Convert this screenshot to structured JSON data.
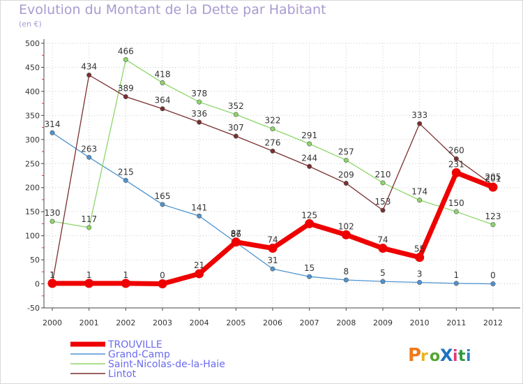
{
  "chart_data": {
    "type": "line",
    "title": "Evolution du Montant de la Dette par Habitant",
    "unit": "(en €)",
    "ylim": [
      -50,
      500
    ],
    "yticks": [
      -50,
      0,
      50,
      100,
      150,
      200,
      250,
      300,
      350,
      400,
      450,
      500
    ],
    "x": [
      "2000",
      "2001",
      "2002",
      "2003",
      "2004",
      "2005",
      "2006",
      "2007",
      "2008",
      "2009",
      "2010",
      "2011",
      "2012"
    ],
    "legend_position": "bottom-left",
    "series": [
      {
        "name": "TROUVILLE",
        "color": "#ee0000",
        "values": [
          1,
          1,
          1,
          0,
          21,
          87,
          74,
          125,
          102,
          74,
          55,
          231,
          201
        ],
        "labels": [
          "1",
          "1",
          "1",
          "0",
          "21",
          "87",
          "74",
          "125",
          "102",
          "74",
          "55",
          "231",
          "201"
        ],
        "emphasis": true
      },
      {
        "name": "Grand-Camp",
        "color": "#4f93cf",
        "values": [
          314,
          263,
          215,
          165,
          141,
          86,
          31,
          15,
          8,
          5,
          3,
          1,
          0
        ],
        "labels": [
          "314",
          "263",
          "215",
          "165",
          "141",
          "86",
          "31",
          "15",
          "8",
          "5",
          "3",
          "1",
          "0"
        ]
      },
      {
        "name": "Saint-Nicolas-de-la-Haie",
        "color": "#8dd66a",
        "values": [
          130,
          117,
          466,
          418,
          378,
          352,
          322,
          291,
          257,
          210,
          174,
          150,
          123
        ],
        "labels": [
          "130",
          "117",
          "466",
          "418",
          "378",
          "352",
          "322",
          "291",
          "257",
          "210",
          "174",
          "150",
          "123"
        ]
      },
      {
        "name": "Lintot",
        "color": "#7a2e2e",
        "values": [
          1,
          434,
          389,
          364,
          336,
          307,
          276,
          244,
          209,
          153,
          333,
          260,
          205
        ],
        "labels": [
          "1",
          "434",
          "389",
          "364",
          "336",
          "307",
          "276",
          "244",
          "209",
          "153",
          "333",
          "260",
          "205"
        ]
      }
    ]
  }
}
